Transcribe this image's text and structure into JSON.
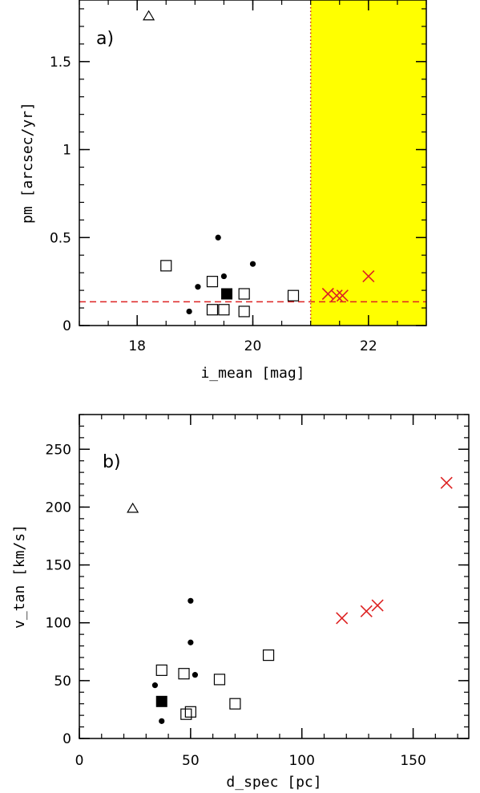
{
  "chart_data": [
    {
      "type": "scatter",
      "panel_label": "a)",
      "xlabel": "i_mean [mag]",
      "ylabel": "pm [arcsec/yr]",
      "xlim": [
        17,
        23
      ],
      "ylim": [
        0,
        1.85
      ],
      "x_ticks": [
        18,
        20,
        22
      ],
      "y_ticks": [
        0,
        0.5,
        1,
        1.5
      ],
      "y_tick_labels": [
        "0",
        "0.5",
        "1",
        "1.5"
      ],
      "minor_x_step": 0.5,
      "minor_y_step": 0.1,
      "grid": false,
      "shaded_region": {
        "x_from": 21,
        "x_to": 23,
        "color": "#ffff00"
      },
      "vertical_line": {
        "x": 21,
        "color": "#cc2222",
        "style": "dotted"
      },
      "horizontal_line": {
        "y": 0.135,
        "color": "#dd2222",
        "style": "dashed"
      },
      "series": [
        {
          "marker": "open-triangle",
          "color": "#000000",
          "points": [
            [
              18.2,
              1.76
            ]
          ]
        },
        {
          "marker": "filled-circle",
          "color": "#000000",
          "points": [
            [
              19.4,
              0.5
            ],
            [
              20.0,
              0.35
            ],
            [
              19.5,
              0.28
            ],
            [
              19.05,
              0.22
            ],
            [
              18.9,
              0.08
            ]
          ]
        },
        {
          "marker": "open-square",
          "color": "#000000",
          "points": [
            [
              18.5,
              0.34
            ],
            [
              19.3,
              0.25
            ],
            [
              19.85,
              0.18
            ],
            [
              20.7,
              0.17
            ],
            [
              19.3,
              0.09
            ],
            [
              19.5,
              0.09
            ],
            [
              19.85,
              0.08
            ]
          ]
        },
        {
          "marker": "filled-square",
          "color": "#000000",
          "points": [
            [
              19.55,
              0.18
            ]
          ]
        },
        {
          "marker": "cross",
          "color": "#dd2222",
          "points": [
            [
              21.3,
              0.18
            ],
            [
              21.45,
              0.17
            ],
            [
              21.55,
              0.17
            ],
            [
              22.0,
              0.28
            ]
          ]
        }
      ]
    },
    {
      "type": "scatter",
      "panel_label": "b)",
      "xlabel": "d_spec [pc]",
      "ylabel": "v_tan [km/s]",
      "xlim": [
        0,
        175
      ],
      "ylim": [
        0,
        280
      ],
      "x_ticks": [
        0,
        50,
        100,
        150
      ],
      "y_ticks": [
        0,
        50,
        100,
        150,
        200,
        250
      ],
      "y_tick_labels": [
        "0",
        "50",
        "100",
        "150",
        "200",
        "250"
      ],
      "minor_x_step": 10,
      "minor_y_step": 10,
      "grid": false,
      "series": [
        {
          "marker": "open-triangle",
          "color": "#000000",
          "points": [
            [
              24,
              199
            ]
          ]
        },
        {
          "marker": "filled-circle",
          "color": "#000000",
          "points": [
            [
              50,
              119
            ],
            [
              50,
              83
            ],
            [
              52,
              55
            ],
            [
              34,
              46
            ],
            [
              37,
              15
            ]
          ]
        },
        {
          "marker": "open-square",
          "color": "#000000",
          "points": [
            [
              37,
              59
            ],
            [
              47,
              56
            ],
            [
              63,
              51
            ],
            [
              85,
              72
            ],
            [
              70,
              30
            ],
            [
              50,
              23
            ],
            [
              48,
              21
            ]
          ]
        },
        {
          "marker": "filled-square",
          "color": "#000000",
          "points": [
            [
              37,
              32
            ]
          ]
        },
        {
          "marker": "cross",
          "color": "#dd2222",
          "points": [
            [
              118,
              104
            ],
            [
              129,
              110
            ],
            [
              134,
              115
            ],
            [
              165,
              221
            ]
          ]
        }
      ]
    }
  ]
}
